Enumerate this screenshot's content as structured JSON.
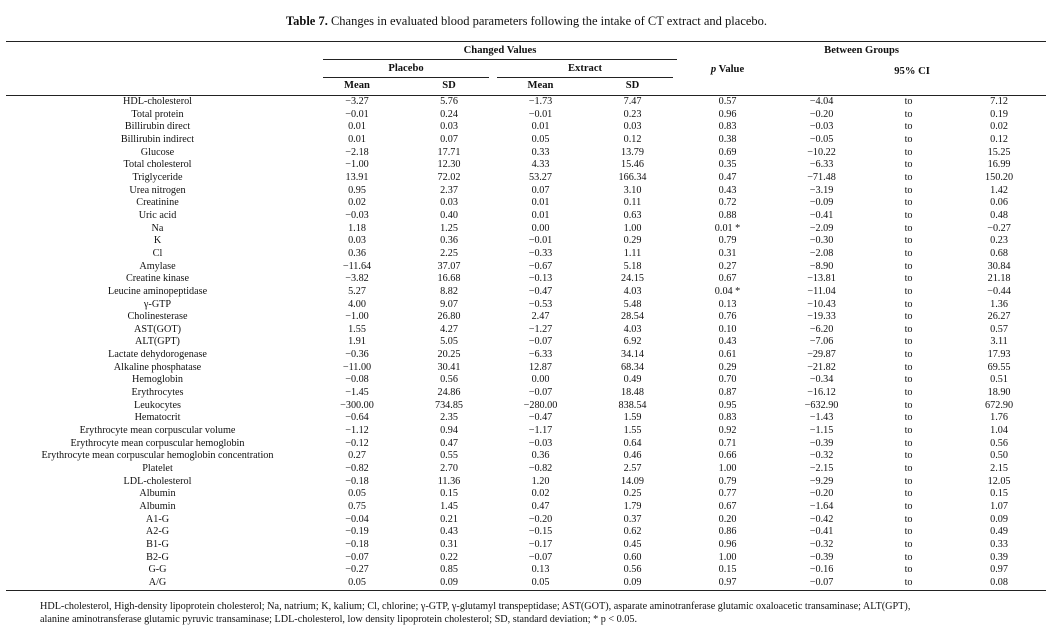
{
  "caption": {
    "label": "Table 7.",
    "text": " Changes in evaluated blood parameters following the intake of CT extract and placebo."
  },
  "header": {
    "changed_values": "Changed Values",
    "between_groups": "Between Groups",
    "placebo": "Placebo",
    "extract": "Extract",
    "p_value_p": "p",
    "p_value_rest": " Value",
    "ci": "95% CI",
    "mean": "Mean",
    "sd": "SD"
  },
  "rows": [
    {
      "name": "HDL-cholesterol",
      "pm": "−3.27",
      "psd": "5.76",
      "em": "−1.73",
      "esd": "7.47",
      "p": "0.57",
      "lo": "−4.04",
      "to": "to",
      "hi": "7.12"
    },
    {
      "name": "Total protein",
      "pm": "−0.01",
      "psd": "0.24",
      "em": "−0.01",
      "esd": "0.23",
      "p": "0.96",
      "lo": "−0.20",
      "to": "to",
      "hi": "0.19"
    },
    {
      "name": "Billirubin direct",
      "pm": "0.01",
      "psd": "0.03",
      "em": "0.01",
      "esd": "0.03",
      "p": "0.83",
      "lo": "−0.03",
      "to": "to",
      "hi": "0.02"
    },
    {
      "name": "Billirubin indirect",
      "pm": "0.01",
      "psd": "0.07",
      "em": "0.05",
      "esd": "0.12",
      "p": "0.38",
      "lo": "−0.05",
      "to": "to",
      "hi": "0.12"
    },
    {
      "name": "Glucose",
      "pm": "−2.18",
      "psd": "17.71",
      "em": "0.33",
      "esd": "13.79",
      "p": "0.69",
      "lo": "−10.22",
      "to": "to",
      "hi": "15.25"
    },
    {
      "name": "Total cholesterol",
      "pm": "−1.00",
      "psd": "12.30",
      "em": "4.33",
      "esd": "15.46",
      "p": "0.35",
      "lo": "−6.33",
      "to": "to",
      "hi": "16.99"
    },
    {
      "name": "Triglyceride",
      "pm": "13.91",
      "psd": "72.02",
      "em": "53.27",
      "esd": "166.34",
      "p": "0.47",
      "lo": "−71.48",
      "to": "to",
      "hi": "150.20"
    },
    {
      "name": "Urea nitrogen",
      "pm": "0.95",
      "psd": "2.37",
      "em": "0.07",
      "esd": "3.10",
      "p": "0.43",
      "lo": "−3.19",
      "to": "to",
      "hi": "1.42"
    },
    {
      "name": "Creatinine",
      "pm": "0.02",
      "psd": "0.03",
      "em": "0.01",
      "esd": "0.11",
      "p": "0.72",
      "lo": "−0.09",
      "to": "to",
      "hi": "0.06"
    },
    {
      "name": "Uric acid",
      "pm": "−0.03",
      "psd": "0.40",
      "em": "0.01",
      "esd": "0.63",
      "p": "0.88",
      "lo": "−0.41",
      "to": "to",
      "hi": "0.48"
    },
    {
      "name": "Na",
      "pm": "1.18",
      "psd": "1.25",
      "em": "0.00",
      "esd": "1.00",
      "p": "0.01 *",
      "lo": "−2.09",
      "to": "to",
      "hi": "−0.27"
    },
    {
      "name": "K",
      "pm": "0.03",
      "psd": "0.36",
      "em": "−0.01",
      "esd": "0.29",
      "p": "0.79",
      "lo": "−0.30",
      "to": "to",
      "hi": "0.23"
    },
    {
      "name": "Cl",
      "pm": "0.36",
      "psd": "2.25",
      "em": "−0.33",
      "esd": "1.11",
      "p": "0.31",
      "lo": "−2.08",
      "to": "to",
      "hi": "0.68"
    },
    {
      "name": "Amylase",
      "pm": "−11.64",
      "psd": "37.07",
      "em": "−0.67",
      "esd": "5.18",
      "p": "0.27",
      "lo": "−8.90",
      "to": "to",
      "hi": "30.84"
    },
    {
      "name": "Creatine kinase",
      "pm": "−3.82",
      "psd": "16.68",
      "em": "−0.13",
      "esd": "24.15",
      "p": "0.67",
      "lo": "−13.81",
      "to": "to",
      "hi": "21.18"
    },
    {
      "name": "Leucine aminopeptidase",
      "pm": "5.27",
      "psd": "8.82",
      "em": "−0.47",
      "esd": "4.03",
      "p": "0.04 *",
      "lo": "−11.04",
      "to": "to",
      "hi": "−0.44"
    },
    {
      "name": "γ-GTP",
      "pm": "4.00",
      "psd": "9.07",
      "em": "−0.53",
      "esd": "5.48",
      "p": "0.13",
      "lo": "−10.43",
      "to": "to",
      "hi": "1.36"
    },
    {
      "name": "Cholinesterase",
      "pm": "−1.00",
      "psd": "26.80",
      "em": "2.47",
      "esd": "28.54",
      "p": "0.76",
      "lo": "−19.33",
      "to": "to",
      "hi": "26.27"
    },
    {
      "name": "AST(GOT)",
      "pm": "1.55",
      "psd": "4.27",
      "em": "−1.27",
      "esd": "4.03",
      "p": "0.10",
      "lo": "−6.20",
      "to": "to",
      "hi": "0.57"
    },
    {
      "name": "ALT(GPT)",
      "pm": "1.91",
      "psd": "5.05",
      "em": "−0.07",
      "esd": "6.92",
      "p": "0.43",
      "lo": "−7.06",
      "to": "to",
      "hi": "3.11"
    },
    {
      "name": "Lactate dehydorogenase",
      "pm": "−0.36",
      "psd": "20.25",
      "em": "−6.33",
      "esd": "34.14",
      "p": "0.61",
      "lo": "−29.87",
      "to": "to",
      "hi": "17.93"
    },
    {
      "name": "Alkaline phosphatase",
      "pm": "−11.00",
      "psd": "30.41",
      "em": "12.87",
      "esd": "68.34",
      "p": "0.29",
      "lo": "−21.82",
      "to": "to",
      "hi": "69.55"
    },
    {
      "name": "Hemoglobin",
      "pm": "−0.08",
      "psd": "0.56",
      "em": "0.00",
      "esd": "0.49",
      "p": "0.70",
      "lo": "−0.34",
      "to": "to",
      "hi": "0.51"
    },
    {
      "name": "Erythrocytes",
      "pm": "−1.45",
      "psd": "24.86",
      "em": "−0.07",
      "esd": "18.48",
      "p": "0.87",
      "lo": "−16.12",
      "to": "to",
      "hi": "18.90"
    },
    {
      "name": "Leukocytes",
      "pm": "−300.00",
      "psd": "734.85",
      "em": "−280.00",
      "esd": "838.54",
      "p": "0.95",
      "lo": "−632.90",
      "to": "to",
      "hi": "672.90"
    },
    {
      "name": "Hematocrit",
      "pm": "−0.64",
      "psd": "2.35",
      "em": "−0.47",
      "esd": "1.59",
      "p": "0.83",
      "lo": "−1.43",
      "to": "to",
      "hi": "1.76"
    },
    {
      "name": "Erythrocyte mean corpuscular volume",
      "pm": "−1.12",
      "psd": "0.94",
      "em": "−1.17",
      "esd": "1.55",
      "p": "0.92",
      "lo": "−1.15",
      "to": "to",
      "hi": "1.04"
    },
    {
      "name": "Erythrocyte mean corpuscular hemoglobin",
      "pm": "−0.12",
      "psd": "0.47",
      "em": "−0.03",
      "esd": "0.64",
      "p": "0.71",
      "lo": "−0.39",
      "to": "to",
      "hi": "0.56"
    },
    {
      "name": "Erythrocyte mean corpuscular hemoglobin concentration",
      "pm": "0.27",
      "psd": "0.55",
      "em": "0.36",
      "esd": "0.46",
      "p": "0.66",
      "lo": "−0.32",
      "to": "to",
      "hi": "0.50"
    },
    {
      "name": "Platelet",
      "pm": "−0.82",
      "psd": "2.70",
      "em": "−0.82",
      "esd": "2.57",
      "p": "1.00",
      "lo": "−2.15",
      "to": "to",
      "hi": "2.15"
    },
    {
      "name": "LDL-cholesterol",
      "pm": "−0.18",
      "psd": "11.36",
      "em": "1.20",
      "esd": "14.09",
      "p": "0.79",
      "lo": "−9.29",
      "to": "to",
      "hi": "12.05"
    },
    {
      "name": "Albumin",
      "pm": "0.05",
      "psd": "0.15",
      "em": "0.02",
      "esd": "0.25",
      "p": "0.77",
      "lo": "−0.20",
      "to": "to",
      "hi": "0.15"
    },
    {
      "name": "Albumin",
      "pm": "0.75",
      "psd": "1.45",
      "em": "0.47",
      "esd": "1.79",
      "p": "0.67",
      "lo": "−1.64",
      "to": "to",
      "hi": "1.07"
    },
    {
      "name": "A1-G",
      "pm": "−0.04",
      "psd": "0.21",
      "em": "−0.20",
      "esd": "0.37",
      "p": "0.20",
      "lo": "−0.42",
      "to": "to",
      "hi": "0.09"
    },
    {
      "name": "A2-G",
      "pm": "−0.19",
      "psd": "0.43",
      "em": "−0.15",
      "esd": "0.62",
      "p": "0.86",
      "lo": "−0.41",
      "to": "to",
      "hi": "0.49"
    },
    {
      "name": "B1-G",
      "pm": "−0.18",
      "psd": "0.31",
      "em": "−0.17",
      "esd": "0.45",
      "p": "0.96",
      "lo": "−0.32",
      "to": "to",
      "hi": "0.33"
    },
    {
      "name": "B2-G",
      "pm": "−0.07",
      "psd": "0.22",
      "em": "−0.07",
      "esd": "0.60",
      "p": "1.00",
      "lo": "−0.39",
      "to": "to",
      "hi": "0.39"
    },
    {
      "name": "G-G",
      "pm": "−0.27",
      "psd": "0.85",
      "em": "0.13",
      "esd": "0.56",
      "p": "0.15",
      "lo": "−0.16",
      "to": "to",
      "hi": "0.97"
    },
    {
      "name": "A/G",
      "pm": "0.05",
      "psd": "0.09",
      "em": "0.05",
      "esd": "0.09",
      "p": "0.97",
      "lo": "−0.07",
      "to": "to",
      "hi": "0.08"
    }
  ],
  "footnote": {
    "line1": "HDL-cholesterol, High-density lipoprotein cholesterol; Na, natrium; K, kalium; Cl, chlorine; γ-GTP, γ-glutamyl transpeptidase; AST(GOT), asparate aminotranferase glutamic oxaloacetic transaminase; ALT(GPT),",
    "line2": "alanine aminotransferase glutamic pyruvic transaminase; LDL-cholesterol, low density lipoprotein cholesterol; SD, standard deviation; * p < 0.05."
  }
}
